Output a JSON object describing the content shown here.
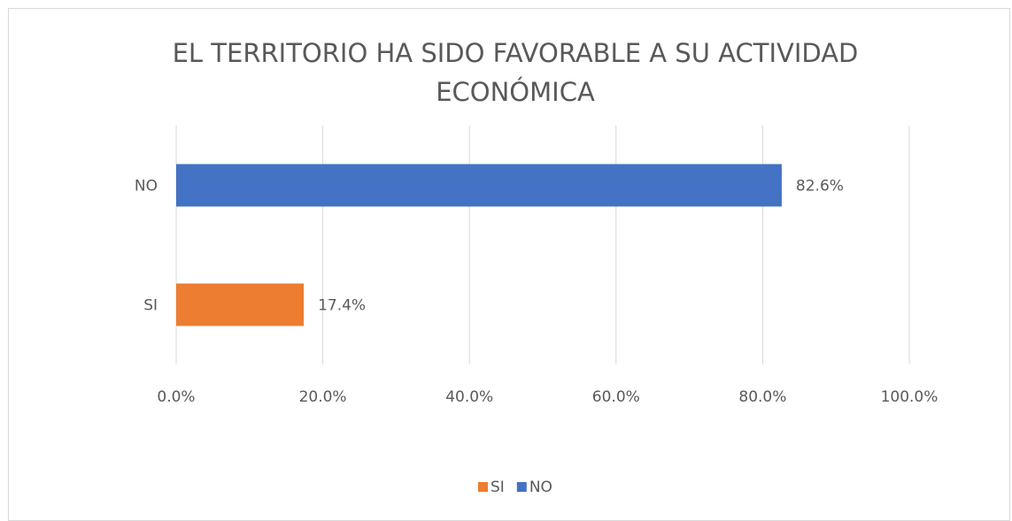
{
  "chart_data": {
    "type": "bar",
    "orientation": "horizontal",
    "title": "EL TERRITORIO HA SIDO FAVORABLE A SU ACTIVIDAD ECONÓMICA",
    "categories": [
      "SI",
      "NO"
    ],
    "values": [
      17.4,
      82.6
    ],
    "value_labels": [
      "17.4%",
      "82.6%"
    ],
    "colors": [
      "#ed7d31",
      "#4472c4"
    ],
    "xlim": [
      0,
      100
    ],
    "xticks": [
      {
        "value": 0,
        "label": "0.0%"
      },
      {
        "value": 20,
        "label": "20.0%"
      },
      {
        "value": 40,
        "label": "40.0%"
      },
      {
        "value": 60,
        "label": "60.0%"
      },
      {
        "value": 80,
        "label": "80.0%"
      },
      {
        "value": 100,
        "label": "100.0%"
      }
    ],
    "grid": true,
    "legend": "bottom"
  }
}
